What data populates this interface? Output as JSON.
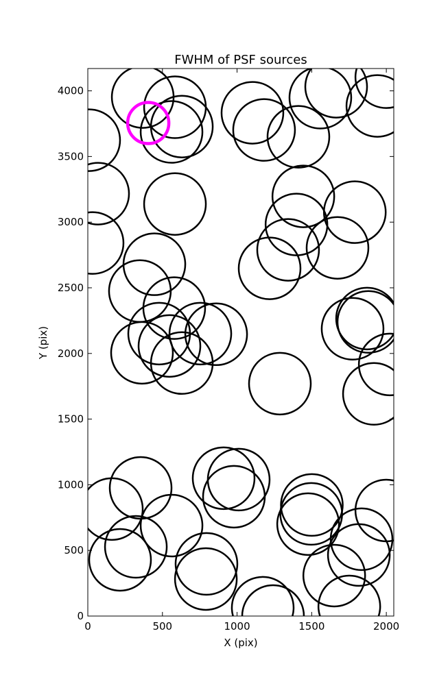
{
  "chart_data": {
    "type": "scatter",
    "title": "FWHM of PSF sources",
    "x_label": "X (pix)",
    "y_label": "Y (pix)",
    "xlim": [
      0,
      2050
    ],
    "ylim": [
      0,
      4170
    ],
    "xticks": [
      0,
      500,
      1000,
      1500,
      2000
    ],
    "yticks": [
      0,
      500,
      1000,
      1500,
      2000,
      2500,
      3000,
      3500,
      4000
    ],
    "series": [
      {
        "color": "#000000",
        "x": [
          368,
          584,
          630,
          561,
          9,
          69,
          584,
          32,
          1103,
          1181,
          1411,
          1558,
          1664,
          1940,
          2000,
          1444,
          1398,
          1789,
          1342,
          1673,
          1218,
          446,
          349,
          579,
          478,
          547,
          363,
          630,
          754,
          860,
          1871,
          1880,
          1774,
          2023,
          1917,
          1287,
          354,
          161,
          561,
          322,
          216,
          910,
          1011,
          979,
          795,
          791,
          1172,
          1241,
          1501,
          1497,
          1476,
          1834,
          1816,
          1651,
          1752,
          2000
        ],
        "values": [
          3953,
          3875,
          3728,
          3687,
          3624,
          3217,
          3138,
          2841,
          3833,
          3702,
          3650,
          3948,
          4031,
          3885,
          4104,
          3196,
          2982,
          3076,
          2789,
          2804,
          2648,
          2679,
          2475,
          2345,
          2151,
          2057,
          2005,
          1927,
          2151,
          2146,
          2266,
          2240,
          2188,
          1916,
          1692,
          1770,
          976,
          815,
          689,
          527,
          428,
          1050,
          1039,
          909,
          397,
          282,
          63,
          0,
          846,
          778,
          700,
          585,
          465,
          308,
          73,
          804
        ]
      },
      {
        "color": "#ff00ff",
        "x": [
          405
        ],
        "values": [
          3755
        ]
      }
    ]
  }
}
